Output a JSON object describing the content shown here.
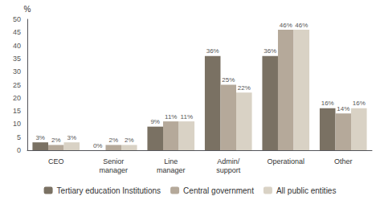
{
  "chart_data": {
    "type": "bar",
    "ylabel": "%",
    "categories": [
      "CEO",
      "Senior\nmanager",
      "Line\nmanager",
      "Admin/\nsupport",
      "Operational",
      "Other"
    ],
    "series": [
      {
        "name": "Tertiary education Institutions",
        "color": "#7a7163",
        "values": [
          3,
          0,
          9,
          36,
          36,
          16
        ],
        "value_labels": [
          "3%",
          "0%",
          "9%",
          "36%",
          "36%",
          "16%"
        ]
      },
      {
        "name": "Central government",
        "color": "#b5a99a",
        "values": [
          2,
          2,
          11,
          25,
          46,
          14
        ],
        "value_labels": [
          "2%",
          "2%",
          "11%",
          "25%",
          "46%",
          "14%"
        ]
      },
      {
        "name": "All public entities",
        "color": "#d9d2c5",
        "values": [
          3,
          2,
          11,
          22,
          46,
          16
        ],
        "value_labels": [
          "3%",
          "2%",
          "11%",
          "22%",
          "46%",
          "16%"
        ]
      }
    ],
    "ylim": [
      0,
      50
    ],
    "yticks": [
      0,
      5,
      10,
      15,
      20,
      25,
      30,
      35,
      40,
      45,
      50
    ],
    "grid": false,
    "legend": "bottom",
    "data_labels": true
  }
}
